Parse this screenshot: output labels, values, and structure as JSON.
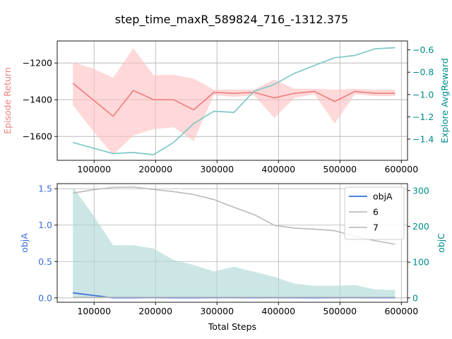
{
  "figure_title": "step_time_maxR_589824_716_-1312.375",
  "colors": {
    "return_line": "#f08080",
    "return_band": "#ffc0c0",
    "explore_line": "#80c8c8",
    "left_label_top": "#f08080",
    "right_axis_teal": "#008b8b",
    "objA_line": "#3a6fd8",
    "objA_label": "#3a6fd8",
    "grey_line": "#bdbdbd",
    "objC_fill": "#b0d8d8"
  },
  "chart_data": [
    {
      "type": "line",
      "ylabel": "Episode Return",
      "y2label": "Explore AvgReward",
      "xlim": [
        40000,
        610000
      ],
      "ylim": [
        -1730,
        -1080
      ],
      "y2lim": [
        -1.59,
        -0.52
      ],
      "xticks": [
        "100000",
        "200000",
        "300000",
        "400000",
        "500000",
        "600000"
      ],
      "yticks": [
        "-1200",
        "-1400",
        "-1600"
      ],
      "y2ticks": [
        "-0.6",
        "-0.8",
        "-1.0",
        "-1.2",
        "-1.4"
      ],
      "grid": true,
      "series": [
        {
          "axis": "left",
          "x": [
            65536,
            98304,
            131072,
            163840,
            196608,
            229376,
            262144,
            294912,
            327680,
            360448,
            393216,
            425984,
            458752,
            491520,
            524288,
            557056,
            589824
          ],
          "y": [
            -1310,
            -1400,
            -1490,
            -1350,
            -1400,
            -1400,
            -1455,
            -1360,
            -1365,
            -1360,
            -1390,
            -1365,
            -1355,
            -1410,
            -1355,
            -1365,
            -1365
          ],
          "y_upper": [
            -1195,
            -1230,
            -1280,
            -1120,
            -1265,
            -1265,
            -1285,
            -1345,
            -1345,
            -1345,
            -1290,
            -1340,
            -1340,
            -1345,
            -1340,
            -1345,
            -1345
          ],
          "y_lower": [
            -1430,
            -1570,
            -1700,
            -1595,
            -1560,
            -1550,
            -1625,
            -1375,
            -1385,
            -1375,
            -1500,
            -1390,
            -1370,
            -1530,
            -1370,
            -1380,
            -1380
          ]
        },
        {
          "axis": "right",
          "x": [
            65536,
            98304,
            131072,
            163840,
            196608,
            229376,
            262144,
            294912,
            327680,
            360448,
            393216,
            425984,
            458752,
            491520,
            524288,
            557056,
            589824
          ],
          "y": [
            -1.43,
            -1.48,
            -1.53,
            -1.52,
            -1.54,
            -1.43,
            -1.26,
            -1.15,
            -1.16,
            -0.97,
            -0.91,
            -0.81,
            -0.74,
            -0.67,
            -0.65,
            -0.59,
            -0.58
          ]
        }
      ]
    },
    {
      "type": "line",
      "xlabel": "Total Steps",
      "ylabel": "objA",
      "y2label": "objC",
      "xlim": [
        40000,
        610000
      ],
      "ylim": [
        -0.06,
        1.57
      ],
      "y2lim": [
        -12.2,
        319.4
      ],
      "xticks": [
        "100000",
        "200000",
        "300000",
        "400000",
        "500000",
        "600000"
      ],
      "yticks": [
        "0.0",
        "0.5",
        "1.0",
        "1.5"
      ],
      "y2ticks": [
        "0",
        "100",
        "200",
        "300"
      ],
      "grid": true,
      "legend_position": "top-right",
      "series": [
        {
          "name": "objA",
          "axis": "left",
          "x": [
            65536,
            98304,
            131072,
            163840,
            196608,
            229376,
            262144,
            294912,
            327680,
            360448,
            393216,
            425984,
            458752,
            491520,
            524288,
            557056,
            589824
          ],
          "y": [
            0.07,
            0.035,
            0.002,
            0.002,
            0.005,
            0.002,
            0.002,
            0.004,
            0.004,
            0.003,
            0.004,
            0.003,
            0.002,
            0.004,
            0.004,
            0.003,
            0.003
          ]
        },
        {
          "name": "6",
          "axis": "right",
          "x": [
            65536,
            98304,
            131072,
            163840,
            196608,
            229376,
            262144,
            294912,
            327680,
            360448,
            393216,
            425984,
            458752,
            491520,
            524288,
            557056,
            589824
          ],
          "y": [
            293,
            302,
            309,
            310,
            303,
            297,
            289,
            275,
            253,
            233,
            203,
            195,
            192,
            188,
            172,
            160,
            150
          ]
        },
        {
          "name": "7",
          "axis": "right",
          "x": [
            65536,
            98304,
            131072,
            163840,
            196608,
            229376,
            262144,
            294912,
            327680,
            360448,
            393216,
            425984,
            458752,
            491520,
            524288,
            557056,
            589824
          ],
          "y": [
            2,
            2,
            2,
            2,
            2,
            2,
            2,
            2,
            2,
            2,
            2,
            2,
            2,
            2,
            2,
            2,
            2
          ]
        },
        {
          "axis": "right",
          "x": [
            65536,
            98304,
            131072,
            163840,
            196608,
            229376,
            262144,
            294912,
            327680,
            360448,
            393216,
            425984,
            458752,
            491520,
            524288,
            557056,
            589824
          ],
          "y_upper": [
            310,
            232,
            147,
            147,
            138,
            106,
            92,
            74,
            87,
            73,
            59,
            40,
            34,
            34,
            36,
            24,
            22
          ],
          "y_lower": [
            0,
            0,
            0,
            0,
            0,
            0,
            0,
            0,
            0,
            0,
            0,
            0,
            0,
            0,
            0,
            0,
            0
          ]
        }
      ]
    }
  ]
}
